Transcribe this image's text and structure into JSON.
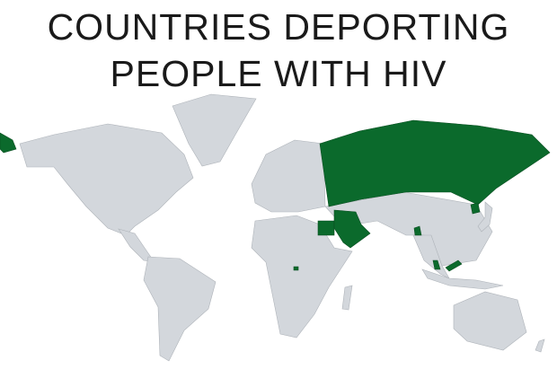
{
  "title": {
    "line1": "COUNTRIES DEPORTING",
    "line2": "PEOPLE WITH HIV"
  },
  "colors": {
    "highlight": "#0b6a2c",
    "land": "#d3d7dc",
    "background": "#ffffff"
  },
  "highlighted_countries": [
    "Russia",
    "Egypt",
    "Saudi Arabia",
    "Iraq",
    "Jordan",
    "Oman",
    "Bangladesh",
    "Malaysia",
    "North Korea",
    "Equatorial Guinea"
  ]
}
